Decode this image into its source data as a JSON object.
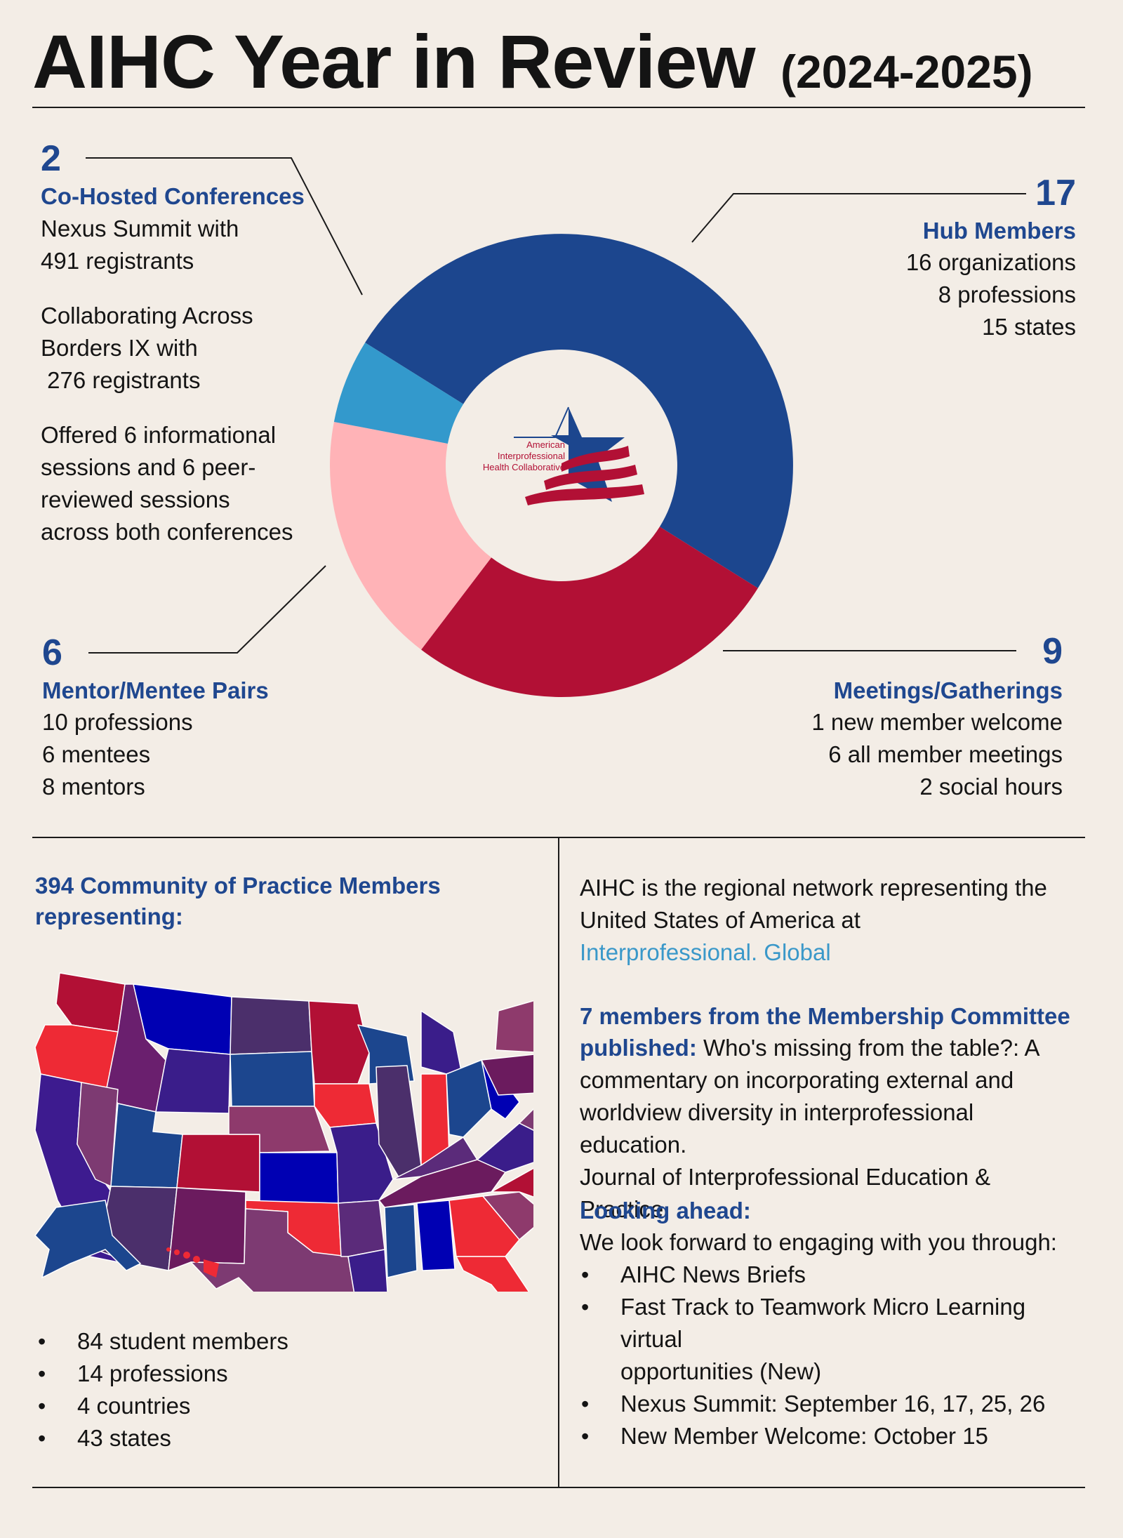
{
  "header": {
    "title": "AIHC Year in Review",
    "year": "(2024-2025)"
  },
  "stats": {
    "conferences": {
      "number": "2",
      "heading": "Co-Hosted Conferences",
      "lines": [
        "Nexus Summit with",
        "491 registrants",
        "Collaborating Across",
        "Borders IX with",
        " 276 registrants",
        "Offered 6 informational",
        "sessions and 6 peer-",
        "reviewed sessions",
        "across both conferences"
      ]
    },
    "hub": {
      "number": "17",
      "heading": "Hub Members",
      "lines": [
        "16 organizations",
        "8 professions",
        "15 states"
      ]
    },
    "mentor": {
      "number": "6",
      "heading": "Mentor/Mentee Pairs",
      "lines": [
        "10 professions",
        "6 mentees",
        "8 mentors"
      ]
    },
    "meetings": {
      "number": "9",
      "heading": "Meetings/Gatherings",
      "lines": [
        "1 new member welcome",
        "6 all member meetings",
        "2 social hours"
      ]
    }
  },
  "logo": {
    "lines": [
      "American",
      "Interprofessional",
      "Health Collaborative"
    ]
  },
  "donut": {
    "segments": [
      {
        "value": 17,
        "color": "#1c468e"
      },
      {
        "value": 9,
        "color": "#b21035"
      },
      {
        "value": 6,
        "color": "#ffb3b7"
      },
      {
        "value": 2,
        "color": "#3399cc"
      }
    ]
  },
  "community": {
    "heading": [
      "394 Community of Practice Members",
      "representing:"
    ],
    "bullets": [
      "84 student members",
      "14 professions",
      "4 countries",
      "43 states"
    ]
  },
  "about": {
    "lines": [
      "AIHC is the regional network representing the",
      "United States of America at"
    ],
    "link": "Interprofessional. Global"
  },
  "publication": {
    "bold_line1": "7 members from the Membership Committee",
    "bold_line2": "published:",
    "line2_rest": " Who's missing from the table?: A",
    "lines": [
      "commentary on incorporating external and",
      "worldview diversity in interprofessional education.",
      "Journal of Interprofessional Education & Practice."
    ]
  },
  "ahead": {
    "heading": "Looking ahead:",
    "intro": "We look forward to engaging with you through:",
    "bullets": [
      "AIHC News Briefs",
      "Fast Track to Teamwork Micro Learning virtual",
      "Nexus Summit: September 16, 17, 25, 26",
      "New Member Welcome: October 15"
    ],
    "bullet2_cont": "opportunities (New)"
  }
}
